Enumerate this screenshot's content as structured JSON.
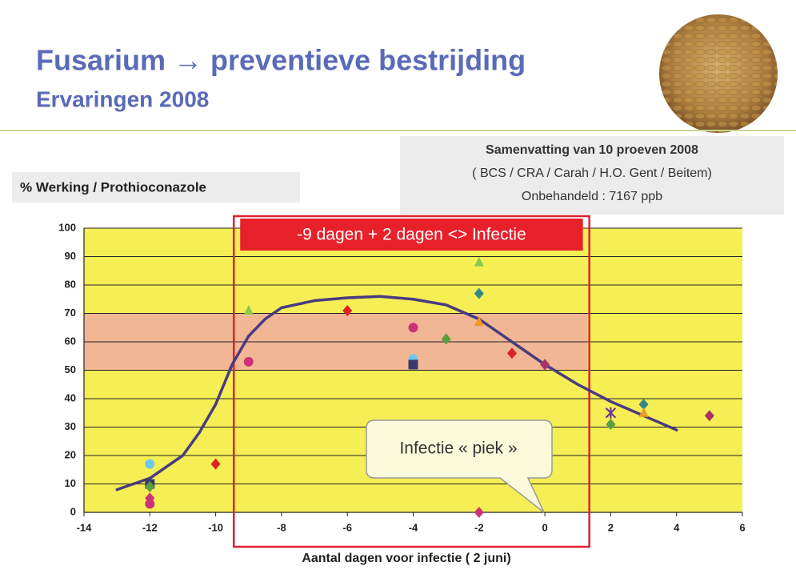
{
  "title": "Fusarium → preventieve bestrijding",
  "subtitle": "Ervaringen 2008",
  "summary": [
    "Samenvatting van 10 proeven 2008",
    "( BCS / CRA / Carah / H.O. Gent / Beitem)",
    "Onbehandeld : 7167 ppb"
  ],
  "chart_data": {
    "type": "scatter",
    "y_label": "% Werking / Prothioconazole",
    "x_label": "Aantal dagen voor infectie ( 2 juni)",
    "annotation": "Infectie « piek »",
    "highlight": {
      "label": "-9 dagen + 2 dagen <> Infectie",
      "xlim": [
        -9.45,
        1.35
      ]
    },
    "band": {
      "xlim": [
        -14,
        1.3
      ],
      "ylim": [
        50,
        70
      ],
      "color": "#f0a0b0"
    },
    "background": "#f6ee55",
    "grid": true,
    "xlim": [
      -14,
      6
    ],
    "ylim": [
      0,
      100
    ],
    "xticks": [
      -14,
      -12,
      -10,
      -8,
      -6,
      -4,
      -2,
      0,
      2,
      4,
      6
    ],
    "yticks": [
      0,
      10,
      20,
      30,
      40,
      50,
      60,
      70,
      80,
      90,
      100
    ],
    "series": [
      {
        "marker": "circle",
        "color": "#6cc8ec",
        "x": [
          -12,
          -4
        ],
        "values": [
          17,
          54
        ]
      },
      {
        "marker": "square",
        "color": "#3a3a6a",
        "x": [
          -12,
          -4
        ],
        "values": [
          10,
          52
        ]
      },
      {
        "marker": "diamond",
        "color": "#cc3377",
        "x": [
          -12,
          -2
        ],
        "values": [
          5,
          0
        ]
      },
      {
        "marker": "circle",
        "color": "#cc3377",
        "x": [
          -12,
          -9,
          -4
        ],
        "values": [
          3,
          53,
          65
        ]
      },
      {
        "marker": "diamond",
        "color": "#dd2222",
        "x": [
          -10,
          -6,
          -1
        ],
        "values": [
          17,
          71,
          56
        ]
      },
      {
        "marker": "triangle",
        "color": "#8cc84a",
        "x": [
          -9,
          -2
        ],
        "values": [
          71,
          88
        ]
      },
      {
        "marker": "diamond",
        "color": "#5c9e44",
        "x": [
          -12,
          -3,
          2
        ],
        "values": [
          9,
          61,
          31
        ]
      },
      {
        "marker": "diamond",
        "color": "#338888",
        "x": [
          -2,
          3
        ],
        "values": [
          77,
          38
        ]
      },
      {
        "marker": "triangle",
        "color": "#ee9922",
        "x": [
          -2,
          3
        ],
        "values": [
          67,
          35
        ]
      },
      {
        "marker": "diamond",
        "color": "#aa3366",
        "x": [
          0,
          5
        ],
        "values": [
          52,
          34
        ]
      },
      {
        "marker": "star",
        "color": "#663399",
        "x": [
          2
        ],
        "values": [
          35
        ]
      }
    ],
    "trend": {
      "color": "#4a3a80",
      "x": [
        -13,
        -12,
        -11,
        -10.5,
        -10,
        -9.5,
        -9,
        -8.5,
        -8,
        -7,
        -6,
        -5,
        -4,
        -3,
        -2,
        -1,
        0,
        1,
        2,
        3,
        4
      ],
      "values": [
        8,
        12,
        20,
        28,
        38,
        52,
        62,
        68,
        72,
        74.5,
        75.5,
        76,
        75,
        73,
        68,
        60,
        52,
        45,
        39,
        34,
        29
      ]
    }
  }
}
